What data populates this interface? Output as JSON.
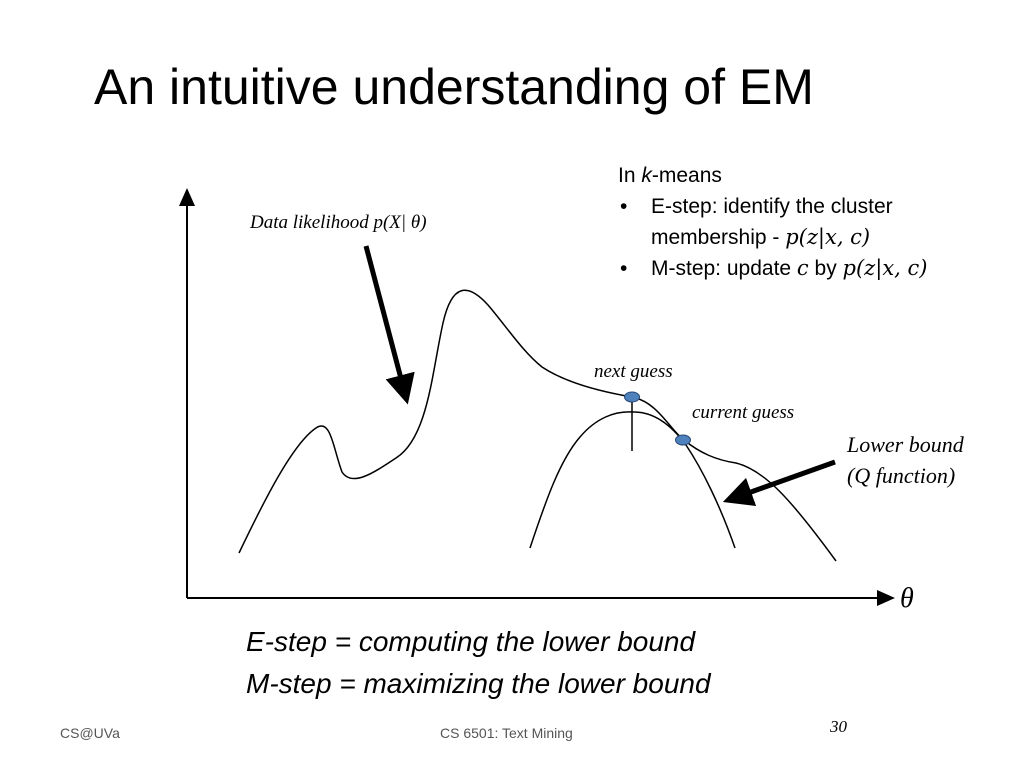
{
  "slide": {
    "title": "An intuitive understanding of EM",
    "kmeans": {
      "intro_prefix": "In ",
      "intro_k": "k",
      "intro_suffix": "-means",
      "bullet_symbol": "•",
      "estep_line1": "E-step: identify the cluster",
      "estep_line2_text": "membership - ",
      "estep_line2_math": "p(z|x, c)",
      "mstep_text": "M-step: update ",
      "mstep_math_c": "c",
      "mstep_by": " by ",
      "mstep_math_p": "p(z|x, c)"
    },
    "labels": {
      "data_likelihood": "Data likelihood p(X| θ)",
      "next_guess": "next guess",
      "current_guess": "current guess",
      "lower_bound_line1": "Lower bound",
      "lower_bound_line2": "(Q function)",
      "theta_axis": "θ"
    },
    "summary": {
      "line1": "E-step = computing the lower bound",
      "line2": "M-step = maximizing the lower bound"
    },
    "footer": {
      "left": "CS@UVa",
      "center": "CS 6501: Text Mining",
      "page_number": "30"
    },
    "colors": {
      "point_fill": "#4f81bd",
      "point_stroke": "#2a4a78"
    }
  }
}
